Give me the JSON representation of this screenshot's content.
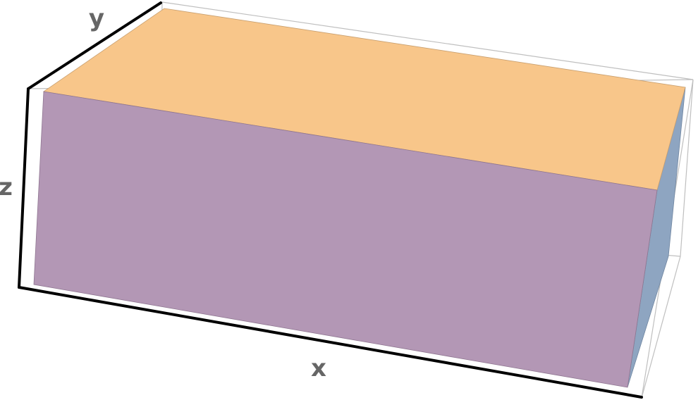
{
  "axes": {
    "x_label": "x",
    "y_label": "y",
    "z_label": "z"
  },
  "colors": {
    "top_face": "#f8c68a",
    "front_face": "#b397b5",
    "side_face": "#8ea5c1",
    "frame_dark": "#000000",
    "frame_light": "#bfbfbf",
    "label": "#666666"
  }
}
